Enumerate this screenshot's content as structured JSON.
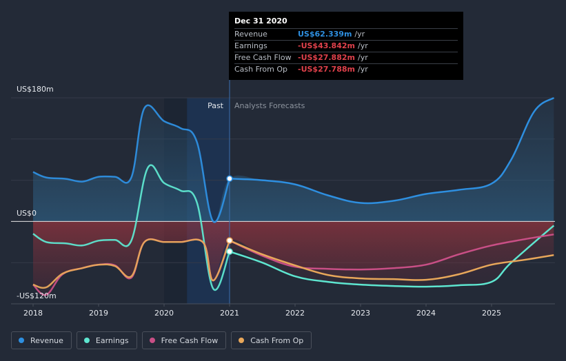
{
  "chart_data": {
    "type": "line",
    "y_axis": {
      "top_label": "US$180m",
      "zero_label": "US$0",
      "bottom_label": "-US$120m",
      "ylim": [
        -120,
        180
      ]
    },
    "x_ticks": [
      "2018",
      "2019",
      "2020",
      "2021",
      "2022",
      "2023",
      "2024",
      "2025"
    ],
    "regions": {
      "past_label": "Past",
      "forecast_label": "Analysts Forecasts"
    },
    "series": [
      {
        "name": "Revenue",
        "color": "#2e8fe0",
        "points": [
          [
            2018.0,
            72
          ],
          [
            2018.2,
            64
          ],
          [
            2018.5,
            62
          ],
          [
            2018.75,
            58
          ],
          [
            2019.0,
            65
          ],
          [
            2019.25,
            65
          ],
          [
            2019.5,
            64
          ],
          [
            2019.7,
            165
          ],
          [
            2020.0,
            146
          ],
          [
            2020.25,
            136
          ],
          [
            2020.5,
            116
          ],
          [
            2020.75,
            0
          ],
          [
            2021.0,
            62.339
          ],
          [
            2021.5,
            60
          ],
          [
            2022.0,
            54
          ],
          [
            2022.5,
            38
          ],
          [
            2023.0,
            27
          ],
          [
            2023.5,
            30
          ],
          [
            2024.0,
            40
          ],
          [
            2024.5,
            46
          ],
          [
            2025.0,
            55
          ],
          [
            2025.3,
            90
          ],
          [
            2025.65,
            160
          ],
          [
            2025.95,
            180
          ]
        ]
      },
      {
        "name": "Earnings",
        "color": "#5ee6d0",
        "points": [
          [
            2018.0,
            -18
          ],
          [
            2018.2,
            -30
          ],
          [
            2018.5,
            -32
          ],
          [
            2018.75,
            -35
          ],
          [
            2019.0,
            -28
          ],
          [
            2019.25,
            -27
          ],
          [
            2019.5,
            -28
          ],
          [
            2019.75,
            78
          ],
          [
            2020.0,
            56
          ],
          [
            2020.25,
            45
          ],
          [
            2020.5,
            28
          ],
          [
            2020.75,
            -98
          ],
          [
            2021.0,
            -43.842
          ],
          [
            2021.5,
            -60
          ],
          [
            2022.0,
            -80
          ],
          [
            2022.5,
            -88
          ],
          [
            2023.0,
            -92
          ],
          [
            2023.5,
            -94
          ],
          [
            2024.0,
            -95
          ],
          [
            2024.5,
            -93
          ],
          [
            2025.0,
            -88
          ],
          [
            2025.3,
            -60
          ],
          [
            2025.95,
            -6
          ]
        ]
      },
      {
        "name": "Free Cash Flow",
        "color": "#c94f86",
        "points": [
          [
            2018.0,
            -92
          ],
          [
            2018.2,
            -107
          ],
          [
            2018.45,
            -77
          ],
          [
            2018.75,
            -68
          ],
          [
            2019.0,
            -63
          ],
          [
            2019.25,
            -64
          ],
          [
            2019.5,
            -82
          ],
          [
            2019.7,
            -30
          ],
          [
            2020.0,
            -30
          ],
          [
            2020.25,
            -30
          ],
          [
            2020.6,
            -31
          ],
          [
            2020.75,
            -86
          ],
          [
            2021.0,
            -27.882
          ],
          [
            2021.5,
            -50
          ],
          [
            2022.0,
            -66
          ],
          [
            2022.5,
            -69
          ],
          [
            2023.0,
            -70
          ],
          [
            2023.5,
            -68
          ],
          [
            2024.0,
            -63
          ],
          [
            2024.5,
            -48
          ],
          [
            2025.0,
            -35
          ],
          [
            2025.5,
            -26
          ],
          [
            2025.95,
            -19
          ]
        ]
      },
      {
        "name": "Cash From Op",
        "color": "#e8a75a",
        "points": [
          [
            2018.0,
            -92
          ],
          [
            2018.2,
            -96
          ],
          [
            2018.45,
            -76
          ],
          [
            2018.75,
            -68
          ],
          [
            2019.0,
            -63
          ],
          [
            2019.25,
            -65
          ],
          [
            2019.5,
            -80
          ],
          [
            2019.7,
            -30
          ],
          [
            2020.0,
            -30
          ],
          [
            2020.25,
            -30
          ],
          [
            2020.6,
            -31
          ],
          [
            2020.75,
            -86
          ],
          [
            2021.0,
            -27.788
          ],
          [
            2021.5,
            -48
          ],
          [
            2022.0,
            -64
          ],
          [
            2022.5,
            -78
          ],
          [
            2023.0,
            -83
          ],
          [
            2023.5,
            -84
          ],
          [
            2024.0,
            -85
          ],
          [
            2024.5,
            -77
          ],
          [
            2025.0,
            -63
          ],
          [
            2025.5,
            -56
          ],
          [
            2025.95,
            -49
          ]
        ]
      }
    ],
    "highlight_x": 2021.0,
    "grid": true
  },
  "tooltip": {
    "date": "Dec 31 2020",
    "rows": [
      {
        "label": "Revenue",
        "value": "US$62.339m",
        "unit": "/yr",
        "color": "#2e8fe0"
      },
      {
        "label": "Earnings",
        "value": "-US$43.842m",
        "unit": "/yr",
        "color": "#e0414b"
      },
      {
        "label": "Free Cash Flow",
        "value": "-US$27.882m",
        "unit": "/yr",
        "color": "#e0414b"
      },
      {
        "label": "Cash From Op",
        "value": "-US$27.788m",
        "unit": "/yr",
        "color": "#e0414b"
      }
    ]
  },
  "legend": [
    {
      "label": "Revenue",
      "color": "#2e8fe0"
    },
    {
      "label": "Earnings",
      "color": "#5ee6d0"
    },
    {
      "label": "Free Cash Flow",
      "color": "#c94f86"
    },
    {
      "label": "Cash From Op",
      "color": "#e8a75a"
    }
  ]
}
